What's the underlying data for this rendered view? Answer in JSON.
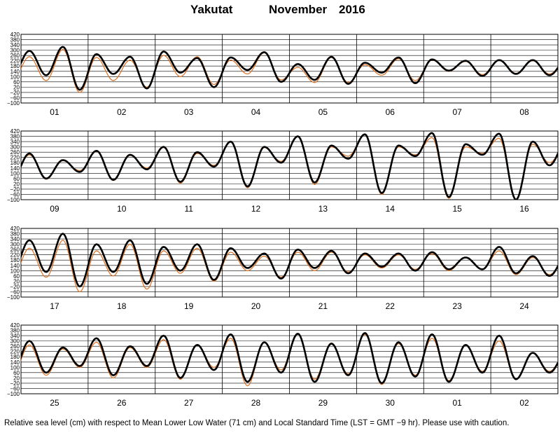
{
  "header": {
    "station": "Yakutat",
    "month": "November",
    "year": "2016"
  },
  "footnote": "Relative sea level (cm) with respect to Mean Lower Low Water (71 cm) and Local Standard Time (LST = GMT −9 hr). Please use with caution.",
  "colors": {
    "observed": "#000000",
    "predicted": "#e07020",
    "grid": "#000000",
    "background": "#ffffff"
  },
  "chart_data": [
    {
      "type": "line",
      "title": "",
      "xlabel": "",
      "ylabel": "",
      "ylim": [
        -100,
        420
      ],
      "y_ticks": [
        420,
        380,
        340,
        300,
        260,
        220,
        180,
        140,
        100,
        60,
        20,
        -20,
        -60,
        -100
      ],
      "y_tick_labels": [
        "420",
        "380",
        "340",
        "300",
        "260",
        "220",
        "180",
        "140",
        "100",
        "60",
        "20",
        "−20",
        "−60",
        "−100"
      ],
      "grid": true,
      "categories": [
        "01",
        "02",
        "03",
        "04",
        "05",
        "06",
        "07",
        "08"
      ],
      "series": [
        {
          "name": "",
          "color": "#000000",
          "highs": [
            295,
            325,
            270,
            250,
            290,
            240,
            245,
            285,
            195,
            250,
            205,
            245,
            230,
            220,
            225,
            225
          ],
          "lows": [
            110,
            0,
            120,
            10,
            130,
            20,
            150,
            60,
            75,
            45,
            130,
            50,
            145,
            105,
            120,
            110
          ]
        },
        {
          "name": "",
          "color": "#e07020",
          "highs": [
            250,
            305,
            245,
            225,
            260,
            250,
            225,
            280,
            170,
            245,
            190,
            235,
            225,
            215,
            225,
            220
          ],
          "lows": [
            70,
            -20,
            70,
            20,
            100,
            40,
            120,
            75,
            55,
            55,
            110,
            70,
            140,
            115,
            125,
            120
          ]
        }
      ]
    },
    {
      "type": "line",
      "title": "",
      "xlabel": "",
      "ylabel": "",
      "ylim": [
        -100,
        420
      ],
      "y_ticks": [
        420,
        380,
        340,
        300,
        260,
        220,
        180,
        140,
        100,
        60,
        20,
        -20,
        -60,
        -100
      ],
      "y_tick_labels": [
        "420",
        "380",
        "340",
        "300",
        "260",
        "220",
        "180",
        "140",
        "100",
        "60",
        "20",
        "−20",
        "−60",
        "−100"
      ],
      "grid": true,
      "categories": [
        "09",
        "10",
        "11",
        "12",
        "13",
        "14",
        "15",
        "16"
      ],
      "series": [
        {
          "name": "",
          "color": "#000000",
          "highs": [
            250,
            200,
            270,
            240,
            300,
            260,
            340,
            300,
            380,
            310,
            395,
            310,
            405,
            320,
            400,
            340
          ],
          "lows": [
            60,
            110,
            50,
            130,
            35,
            150,
            0,
            180,
            30,
            210,
            -50,
            230,
            -80,
            240,
            -100,
            160
          ]
        },
        {
          "name": "",
          "color": "#e07020",
          "highs": [
            240,
            195,
            265,
            235,
            295,
            250,
            335,
            295,
            380,
            300,
            390,
            300,
            370,
            300,
            365,
            320
          ],
          "lows": [
            55,
            120,
            45,
            140,
            25,
            160,
            -10,
            190,
            15,
            230,
            -60,
            240,
            -90,
            250,
            -100,
            180
          ]
        }
      ]
    },
    {
      "type": "line",
      "title": "",
      "xlabel": "",
      "ylabel": "",
      "ylim": [
        -100,
        420
      ],
      "y_ticks": [
        420,
        380,
        340,
        300,
        260,
        220,
        180,
        140,
        100,
        60,
        20,
        -20,
        -60,
        -100
      ],
      "y_tick_labels": [
        "420",
        "380",
        "340",
        "300",
        "260",
        "220",
        "180",
        "140",
        "100",
        "60",
        "20",
        "−20",
        "−60",
        "−100"
      ],
      "grid": true,
      "categories": [
        "17",
        "18",
        "19",
        "20",
        "21",
        "22",
        "23",
        "24"
      ],
      "series": [
        {
          "name": "",
          "color": "#000000",
          "highs": [
            330,
            380,
            300,
            330,
            280,
            300,
            270,
            230,
            260,
            250,
            230,
            230,
            240,
            200,
            280,
            210
          ],
          "lows": [
            90,
            -20,
            90,
            0,
            100,
            30,
            120,
            40,
            120,
            80,
            130,
            100,
            110,
            110,
            80,
            60
          ]
        },
        {
          "name": "",
          "color": "#e07020",
          "highs": [
            270,
            330,
            250,
            300,
            250,
            270,
            240,
            210,
            240,
            240,
            220,
            220,
            230,
            200,
            250,
            200
          ],
          "lows": [
            50,
            -60,
            60,
            -40,
            80,
            20,
            100,
            50,
            100,
            90,
            120,
            110,
            100,
            110,
            70,
            70
          ]
        }
      ]
    },
    {
      "type": "line",
      "title": "",
      "xlabel": "",
      "ylabel": "",
      "ylim": [
        -100,
        420
      ],
      "y_ticks": [
        420,
        380,
        340,
        300,
        260,
        220,
        180,
        140,
        100,
        60,
        20,
        -20,
        -60,
        -100
      ],
      "y_tick_labels": [
        "420",
        "380",
        "340",
        "300",
        "260",
        "220",
        "180",
        "140",
        "100",
        "60",
        "20",
        "−20",
        "−60",
        "−100"
      ],
      "grid": true,
      "categories": [
        "25",
        "26",
        "27",
        "28",
        "29",
        "30",
        "01",
        "02"
      ],
      "series": [
        {
          "name": "",
          "color": "#000000",
          "highs": [
            300,
            250,
            320,
            260,
            340,
            270,
            350,
            290,
            355,
            280,
            360,
            290,
            350,
            270,
            340,
            210
          ],
          "lows": [
            60,
            110,
            40,
            110,
            20,
            80,
            -10,
            60,
            -10,
            40,
            -20,
            30,
            -10,
            60,
            10,
            60
          ]
        },
        {
          "name": "",
          "color": "#e07020",
          "highs": [
            270,
            240,
            290,
            250,
            310,
            265,
            320,
            290,
            350,
            285,
            350,
            280,
            320,
            270,
            300,
            210
          ],
          "lows": [
            40,
            100,
            20,
            100,
            10,
            100,
            -40,
            80,
            10,
            50,
            -30,
            40,
            0,
            70,
            10,
            70
          ]
        }
      ]
    }
  ]
}
